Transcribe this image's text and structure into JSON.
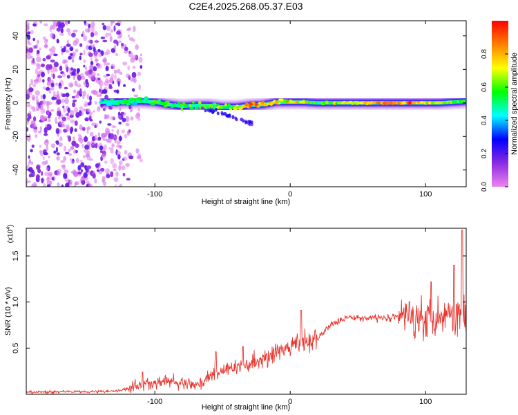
{
  "figure": {
    "title": "C2E4.2025.268.05.37.E03"
  },
  "chart_data": [
    {
      "type": "heatmap",
      "title": "C2E4.2025.268.05.37.E03",
      "xlabel": "Height of straight line (km)",
      "ylabel": "Frequency (Hz)",
      "xlim": [
        -195,
        130
      ],
      "ylim": [
        -50,
        49
      ],
      "xticks": [
        -100,
        0,
        100
      ],
      "yticks": [
        -40,
        -20,
        0,
        20,
        40
      ],
      "xtick_labels": [
        "-100",
        "0",
        "100"
      ],
      "ytick_labels": [
        "-40",
        "-20",
        "0",
        "20",
        "40"
      ],
      "colorbar": {
        "label": "Normalized spectral amplitude",
        "range": [
          0,
          1
        ],
        "ticks": [
          0.0,
          0.2,
          0.4,
          0.6,
          0.8
        ],
        "tick_labels": [
          "0.0",
          "0.2",
          "0.4",
          "0.6",
          "0.8"
        ],
        "colors": [
          "#ee82ee",
          "#8a2be2",
          "#0000ff",
          "#00ffff",
          "#00ff00",
          "#ffff00",
          "#ff8000",
          "#ff0000"
        ]
      },
      "noise_region": {
        "x_range": [
          -195,
          -115
        ],
        "freq_range": [
          -50,
          49
        ],
        "amplitude": 0.15
      },
      "trace": {
        "x": [
          -140,
          -130,
          -120,
          -110,
          -100,
          -90,
          -80,
          -70,
          -60,
          -50,
          -40,
          -30,
          -20,
          -10,
          0,
          10,
          20,
          30,
          40,
          50,
          60,
          70,
          80,
          90,
          100,
          110,
          120,
          130
        ],
        "frequency": [
          0.5,
          0.5,
          0.8,
          1.0,
          0.5,
          -1.0,
          -2.0,
          -1.5,
          -1.5,
          -2.5,
          -2.5,
          -1.5,
          -1.0,
          0.5,
          0.5,
          0.5,
          0.0,
          0.0,
          0.0,
          0.0,
          0.0,
          0.0,
          0.0,
          0.0,
          0.0,
          0.0,
          0.5,
          1.0
        ],
        "amplitude": [
          0.4,
          0.45,
          0.5,
          0.5,
          0.55,
          0.55,
          0.6,
          0.55,
          0.6,
          0.6,
          0.65,
          0.85,
          0.8,
          0.75,
          0.75,
          0.7,
          0.6,
          0.6,
          0.65,
          0.7,
          0.8,
          0.9,
          0.85,
          0.85,
          0.75,
          0.7,
          0.55,
          0.5
        ]
      }
    },
    {
      "type": "line",
      "xlabel": "Height of straight line (km)",
      "ylabel": "SNR (10 * v/v)",
      "multiplier_base": "(x10",
      "multiplier_exp": "4",
      "multiplier_close": ")",
      "xlim": [
        -195,
        130
      ],
      "ylim": [
        0,
        18000
      ],
      "xticks": [
        -100,
        0,
        100
      ],
      "yticks": [
        5000,
        10000,
        15000
      ],
      "xtick_labels": [
        "-100",
        "0",
        "100"
      ],
      "ytick_labels": [
        "0.5",
        "1.0",
        "1.5"
      ],
      "series": [
        {
          "name": "SNR",
          "color": "#e8352e",
          "x": [
            -195,
            -180,
            -160,
            -140,
            -130,
            -120,
            -110,
            -100,
            -90,
            -80,
            -70,
            -60,
            -50,
            -40,
            -30,
            -20,
            -10,
            0,
            10,
            20,
            30,
            40,
            50,
            60,
            70,
            80,
            90,
            100,
            110,
            120,
            130
          ],
          "y": [
            200,
            250,
            300,
            300,
            350,
            600,
            1000,
            1200,
            1400,
            1100,
            1000,
            1800,
            2600,
            3000,
            3300,
            3700,
            4500,
            5100,
            5500,
            6000,
            7600,
            8200,
            8300,
            8300,
            8300,
            8400,
            8500,
            8400,
            8600,
            8800,
            8900
          ]
        }
      ],
      "spikes": [
        {
          "x": 8,
          "y": 9100
        },
        {
          "x": 127,
          "y": 17800
        },
        {
          "x": 121,
          "y": 14000
        },
        {
          "x": 104,
          "y": 12200
        },
        {
          "x": -35,
          "y": 5200
        },
        {
          "x": -55,
          "y": 4600
        },
        {
          "x": -109,
          "y": 2400
        }
      ]
    }
  ]
}
